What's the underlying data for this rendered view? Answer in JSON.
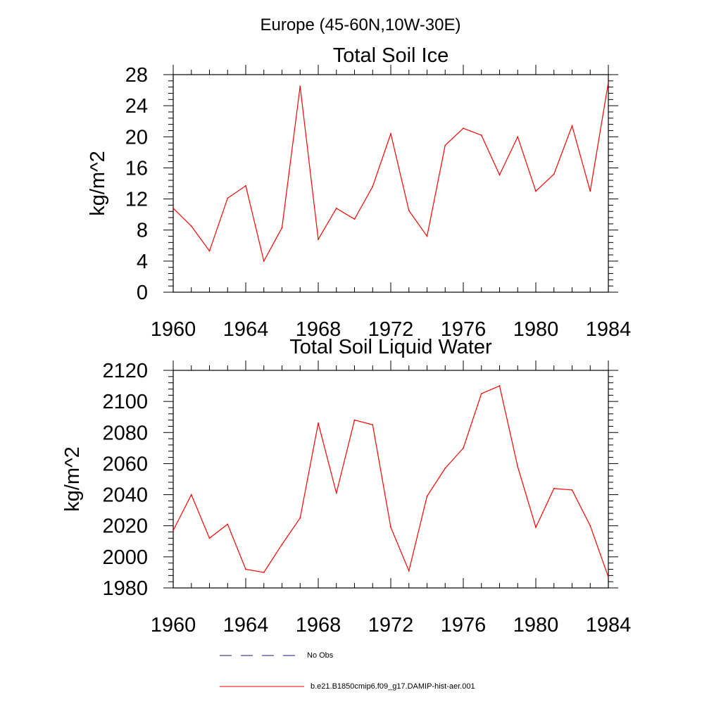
{
  "figure": {
    "title": "Europe (45-60N,10W-30E)"
  },
  "chart_data": [
    {
      "type": "line",
      "title": "Total Soil Ice",
      "ylabel": "kg/m^2",
      "xlabel": "",
      "xlim": [
        1960,
        1984
      ],
      "ylim": [
        0,
        28
      ],
      "x_ticks": [
        "1960",
        "1964",
        "1968",
        "1972",
        "1976",
        "1980",
        "1984"
      ],
      "y_ticks": [
        "0",
        "4",
        "8",
        "12",
        "16",
        "20",
        "24",
        "28"
      ],
      "grid": false,
      "series": [
        {
          "name": "b.e21.B1850cmip6.f09_g17.DAMIP-hist-aer.001",
          "color": "#ff0000",
          "x": [
            1960,
            1961,
            1962,
            1963,
            1964,
            1965,
            1966,
            1967,
            1968,
            1969,
            1970,
            1971,
            1972,
            1973,
            1974,
            1975,
            1976,
            1977,
            1978,
            1979,
            1980,
            1981,
            1982,
            1983,
            1984
          ],
          "values": [
            10.8,
            8.5,
            5.3,
            12.1,
            13.7,
            4.0,
            8.3,
            26.5,
            6.8,
            10.8,
            9.4,
            13.6,
            20.4,
            10.5,
            7.2,
            18.9,
            21.1,
            20.2,
            15.1,
            20.0,
            13.0,
            15.2,
            21.4,
            13.0,
            27.0
          ]
        }
      ]
    },
    {
      "type": "line",
      "title": "Total Soil Liquid Water",
      "ylabel": "kg/m^2",
      "xlabel": "",
      "xlim": [
        1960,
        1984
      ],
      "ylim": [
        1980,
        2120
      ],
      "x_ticks": [
        "1960",
        "1964",
        "1968",
        "1972",
        "1976",
        "1980",
        "1984"
      ],
      "y_ticks": [
        "1980",
        "2000",
        "2020",
        "2040",
        "2060",
        "2080",
        "2100",
        "2120"
      ],
      "grid": false,
      "series": [
        {
          "name": "b.e21.B1850cmip6.f09_g17.DAMIP-hist-aer.001",
          "color": "#ff0000",
          "x": [
            1960,
            1961,
            1962,
            1963,
            1964,
            1965,
            1966,
            1967,
            1968,
            1969,
            1970,
            1971,
            1972,
            1973,
            1974,
            1975,
            1976,
            1977,
            1978,
            1979,
            1980,
            1981,
            1982,
            1983,
            1984
          ],
          "values": [
            2017,
            2040,
            2012,
            2021,
            1992,
            1990,
            2008,
            2025,
            2086,
            2041,
            2088,
            2085,
            2019,
            1991,
            2039,
            2057,
            2070,
            2105,
            2110,
            2058,
            2019,
            2044,
            2043,
            2020,
            1987
          ]
        }
      ]
    }
  ],
  "legend": [
    {
      "label": "No Obs",
      "color": "#1a1a8a",
      "dash": "dashed"
    },
    {
      "label": "b.e21.B1850cmip6.f09_g17.DAMIP-hist-aer.001",
      "color": "#ff0000",
      "dash": "solid"
    }
  ]
}
